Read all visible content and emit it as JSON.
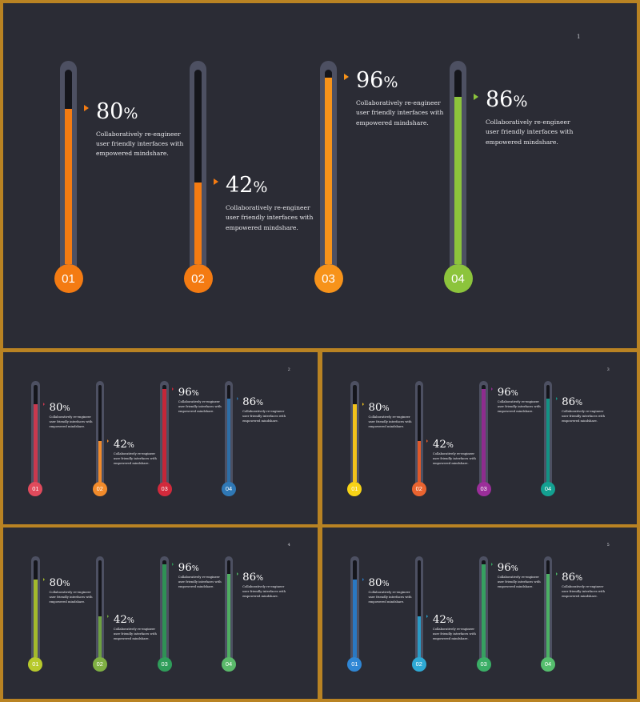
{
  "slides": [
    {
      "page_number": "1",
      "gauges": [
        {
          "number": "01",
          "value": "80",
          "percent_sign": "%",
          "level": 0.8,
          "description": "Collaboratively re-engineer user friendly interfaces with empowered mindshare.",
          "color": "#f47b12",
          "bulb_color": "#f47b12"
        },
        {
          "number": "02",
          "value": "42",
          "percent_sign": "%",
          "level": 0.42,
          "description": "Collaboratively re-engineer user friendly interfaces with empowered mindshare.",
          "color": "#f47b12",
          "bulb_color": "#f47b12"
        },
        {
          "number": "03",
          "value": "96",
          "percent_sign": "%",
          "level": 0.96,
          "description": "Collaboratively re-engineer user friendly interfaces with empowered mindshare.",
          "color": "#f7931a",
          "bulb_color": "#f7931a"
        },
        {
          "number": "04",
          "value": "86",
          "percent_sign": "%",
          "level": 0.86,
          "description": "Collaboratively re-engineer user friendly interfaces with empowered mindshare.",
          "color": "#8cc43c",
          "bulb_color": "#8cc43c"
        }
      ]
    },
    {
      "page_number": "2",
      "gauges": [
        {
          "number": "01",
          "value": "80",
          "percent_sign": "%",
          "level": 0.8,
          "description": "Collaboratively re-engineer user friendly interfaces with empowered mindshare.",
          "color": "#c8394f",
          "bulb_color": "#e04a5c"
        },
        {
          "number": "02",
          "value": "42",
          "percent_sign": "%",
          "level": 0.42,
          "description": "Collaboratively re-engineer user friendly interfaces with empowered mindshare.",
          "color": "#f28b2b",
          "bulb_color": "#f28b2b"
        },
        {
          "number": "03",
          "value": "96",
          "percent_sign": "%",
          "level": 0.96,
          "description": "Collaboratively re-engineer user friendly interfaces with empowered mindshare.",
          "color": "#c42638",
          "bulb_color": "#d22a3c"
        },
        {
          "number": "04",
          "value": "86",
          "percent_sign": "%",
          "level": 0.86,
          "description": "Collaboratively re-engineer user friendly interfaces with empowered mindshare.",
          "color": "#2d6ea6",
          "bulb_color": "#2f78b5"
        }
      ]
    },
    {
      "page_number": "3",
      "gauges": [
        {
          "number": "01",
          "value": "80",
          "percent_sign": "%",
          "level": 0.8,
          "description": "Collaboratively re-engineer user friendly interfaces with empowered mindshare.",
          "color": "#f2c21b",
          "bulb_color": "#f7d316"
        },
        {
          "number": "02",
          "value": "42",
          "percent_sign": "%",
          "level": 0.42,
          "description": "Collaboratively re-engineer user friendly interfaces with empowered mindshare.",
          "color": "#e0592a",
          "bulb_color": "#ea6430"
        },
        {
          "number": "03",
          "value": "96",
          "percent_sign": "%",
          "level": 0.96,
          "description": "Collaboratively re-engineer user friendly interfaces with empowered mindshare.",
          "color": "#8e2c8e",
          "bulb_color": "#9b2e9a"
        },
        {
          "number": "04",
          "value": "86",
          "percent_sign": "%",
          "level": 0.86,
          "description": "Collaboratively re-engineer user friendly interfaces with empowered mindshare.",
          "color": "#129284",
          "bulb_color": "#13a091"
        }
      ]
    },
    {
      "page_number": "4",
      "gauges": [
        {
          "number": "01",
          "value": "80",
          "percent_sign": "%",
          "level": 0.8,
          "description": "Collaboratively re-engineer user friendly interfaces with empowered mindshare.",
          "color": "#a3b92c",
          "bulb_color": "#b7c92c"
        },
        {
          "number": "02",
          "value": "42",
          "percent_sign": "%",
          "level": 0.42,
          "description": "Collaboratively re-engineer user friendly interfaces with empowered mindshare.",
          "color": "#6ea241",
          "bulb_color": "#7fb043"
        },
        {
          "number": "03",
          "value": "96",
          "percent_sign": "%",
          "level": 0.96,
          "description": "Collaboratively re-engineer user friendly interfaces with empowered mindshare.",
          "color": "#2f9155",
          "bulb_color": "#2f9d5a"
        },
        {
          "number": "04",
          "value": "86",
          "percent_sign": "%",
          "level": 0.86,
          "description": "Collaboratively re-engineer user friendly interfaces with empowered mindshare.",
          "color": "#4fae62",
          "bulb_color": "#5ab96a"
        }
      ]
    },
    {
      "page_number": "5",
      "gauges": [
        {
          "number": "01",
          "value": "80",
          "percent_sign": "%",
          "level": 0.8,
          "description": "Collaboratively re-engineer user friendly interfaces with empowered mindshare.",
          "color": "#2a78c2",
          "bulb_color": "#2f86d4"
        },
        {
          "number": "02",
          "value": "42",
          "percent_sign": "%",
          "level": 0.42,
          "description": "Collaboratively re-engineer user friendly interfaces with empowered mindshare.",
          "color": "#2a9bc6",
          "bulb_color": "#2ea9d4"
        },
        {
          "number": "03",
          "value": "96",
          "percent_sign": "%",
          "level": 0.96,
          "description": "Collaboratively re-engineer user friendly interfaces with empowered mindshare.",
          "color": "#36a060",
          "bulb_color": "#3aae66"
        },
        {
          "number": "04",
          "value": "86",
          "percent_sign": "%",
          "level": 0.86,
          "description": "Collaboratively re-engineer user friendly interfaces with empowered mindshare.",
          "color": "#4cb064",
          "bulb_color": "#55bd6d"
        }
      ]
    }
  ]
}
